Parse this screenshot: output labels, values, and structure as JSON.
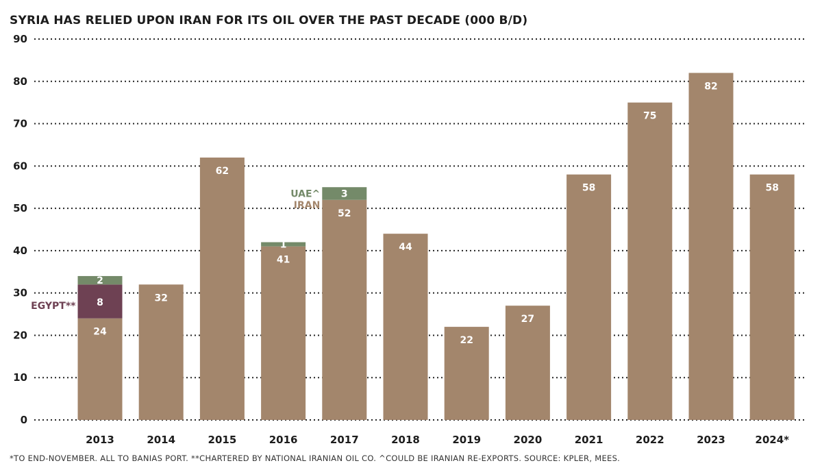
{
  "chart_data": {
    "type": "bar",
    "title": "SYRIA HAS RELIED UPON IRAN FOR ITS OIL OVER THE PAST DECADE (000 B/D)",
    "footnote": "*TO END-NOVEMBER. ALL TO BANIAS PORT. **CHARTERED BY NATIONAL IRANIAN OIL CO. ^COULD BE IRANIAN RE-EXPORTS. SOURCE: KPLER, MEES.",
    "stacked": true,
    "categories": [
      "2013",
      "2014",
      "2015",
      "2016",
      "2017",
      "2018",
      "2019",
      "2020",
      "2021",
      "2022",
      "2023",
      "2024*"
    ],
    "ylim": [
      0,
      90
    ],
    "yticks": [
      "0",
      "10",
      "20",
      "30",
      "40",
      "50",
      "60",
      "70",
      "80",
      "90"
    ],
    "grid": "horizontal dotted",
    "series": [
      {
        "key": "iran",
        "color": "#a3866c",
        "labels": [
          "24",
          "32",
          "62",
          "41",
          "52",
          "44",
          "22",
          "27",
          "58",
          "75",
          "82",
          "58"
        ],
        "values": [
          24,
          32,
          62,
          41,
          52,
          44,
          22,
          27,
          58,
          75,
          82,
          58
        ]
      },
      {
        "key": "egypt",
        "color": "#6e4153",
        "labels": [
          "8",
          "",
          "",
          "",
          "",
          "",
          "",
          "",
          "",
          "",
          "",
          ""
        ],
        "values": [
          8,
          0,
          0,
          0,
          0,
          0,
          0,
          0,
          0,
          0,
          0,
          0
        ]
      },
      {
        "key": "uae",
        "color": "#748a69",
        "labels": [
          "2",
          "",
          "",
          "1",
          "3",
          "",
          "",
          "",
          "",
          "",
          "",
          ""
        ],
        "values": [
          2,
          0,
          0,
          1,
          3,
          0,
          0,
          0,
          0,
          0,
          0,
          0
        ]
      }
    ],
    "annotations": [
      {
        "text": "EGYPT**",
        "series": "egypt",
        "category": "2013",
        "color": "#6e4153"
      },
      {
        "text": "UAE^",
        "series": "uae",
        "category": "2017",
        "color": "#748a69"
      },
      {
        "text": "IRAN",
        "series": "iran",
        "category": "2017",
        "color": "#a3866c"
      }
    ]
  }
}
